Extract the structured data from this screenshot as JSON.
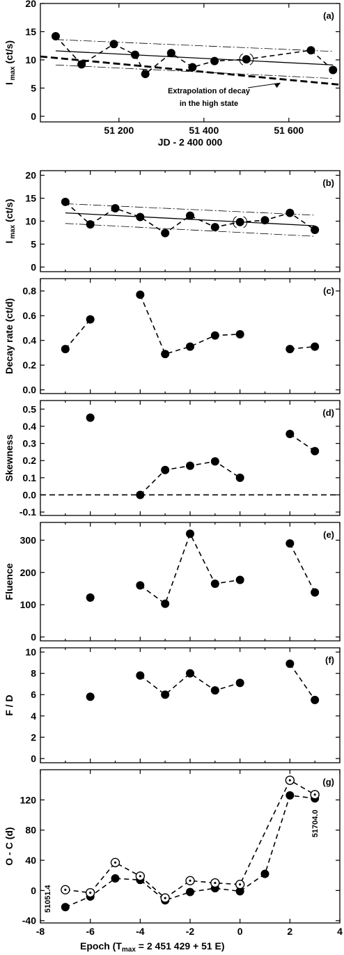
{
  "chart_data": [
    {
      "type": "line",
      "panel_label": "(a)",
      "ylabel": "I",
      "ylabel_sub": "max",
      "ylabel_unit": "(ct/s)",
      "xlabel": "JD - 2 400 000",
      "xlim": [
        51015,
        51720
      ],
      "ylim": [
        -1,
        20
      ],
      "xticks": [
        51200,
        51400,
        51600
      ],
      "xtick_labels": [
        "51 200",
        "51 400",
        "51 600"
      ],
      "yticks": [
        0,
        5,
        10,
        15,
        20
      ],
      "series": [
        {
          "style": "dashed-markers",
          "x": [
            51051,
            51112,
            51188,
            51238,
            51262,
            51323,
            51373,
            51425,
            51500,
            51652,
            51704
          ],
          "y": [
            14.2,
            9.2,
            12.8,
            10.9,
            7.5,
            11.2,
            8.7,
            9.8,
            10.1,
            11.7,
            8.2
          ],
          "open_x": [
            51500
          ]
        }
      ],
      "fits": [
        {
          "style": "solid",
          "x": [
            51051,
            51704
          ],
          "y": [
            11.6,
            9.1
          ]
        },
        {
          "style": "dashdot",
          "x": [
            51051,
            51704
          ],
          "y": [
            13.6,
            11.5
          ]
        },
        {
          "style": "dashdot",
          "x": [
            51051,
            51704
          ],
          "y": [
            9.1,
            6.7
          ]
        },
        {
          "style": "thick-dashed",
          "x": [
            51015,
            51720
          ],
          "y": [
            10.6,
            5.6
          ]
        }
      ],
      "annotation": {
        "line1": "Extrapolation of decay",
        "line2": "in the high state",
        "target_x": 51580,
        "target_y": 5.9
      }
    },
    {
      "type": "line",
      "panel_label": "(b)",
      "ylabel": "I",
      "ylabel_sub": "max",
      "ylabel_unit": "(ct/s)",
      "xlim": [
        -8,
        4
      ],
      "ylim": [
        -1,
        21
      ],
      "yticks": [
        0,
        5,
        10,
        15,
        20
      ],
      "series": [
        {
          "style": "dashed-markers",
          "x": [
            -7,
            -6,
            -5,
            -4,
            -3,
            -2,
            -1,
            0,
            1,
            2,
            3
          ],
          "y": [
            14.2,
            9.3,
            12.8,
            10.9,
            7.4,
            11.2,
            8.7,
            9.8,
            10.2,
            11.8,
            8.1
          ],
          "open_x": [
            0
          ]
        }
      ],
      "fits": [
        {
          "style": "solid",
          "x": [
            -7,
            3
          ],
          "y": [
            11.8,
            9.0
          ]
        },
        {
          "style": "dashdot",
          "x": [
            -7,
            3
          ],
          "y": [
            13.8,
            11.3
          ]
        },
        {
          "style": "dashdot",
          "x": [
            -7,
            3
          ],
          "y": [
            9.5,
            6.7
          ]
        }
      ]
    },
    {
      "type": "line",
      "panel_label": "(c)",
      "ylabel": "Decay  rate   (ct/d)",
      "xlim": [
        -8,
        4
      ],
      "ylim": [
        -0.03,
        0.9
      ],
      "yticks": [
        0.0,
        0.2,
        0.4,
        0.6,
        0.8
      ],
      "ytick_labels": [
        "0.0",
        "0.2",
        "0.4",
        "0.6",
        "0.8"
      ],
      "series": [
        {
          "style": "dashed-markers",
          "x": [
            -7,
            -6
          ],
          "y": [
            0.33,
            0.57
          ]
        },
        {
          "style": "dashed-markers",
          "x": [
            -4,
            -3,
            -2,
            -1,
            0
          ],
          "y": [
            0.77,
            0.29,
            0.35,
            0.44,
            0.45
          ]
        },
        {
          "style": "dashed-markers",
          "x": [
            2,
            3
          ],
          "y": [
            0.33,
            0.35
          ]
        }
      ]
    },
    {
      "type": "line",
      "panel_label": "(d)",
      "ylabel": "Skewness",
      "xlim": [
        -8,
        4
      ],
      "ylim": [
        -0.12,
        0.55
      ],
      "yticks": [
        -0.1,
        0.0,
        0.1,
        0.2,
        0.3,
        0.4,
        0.5
      ],
      "ytick_labels": [
        "-0.1",
        "0.0",
        "0.1",
        "0.2",
        "0.3",
        "0.4",
        "0.5"
      ],
      "reference_line": 0.0,
      "series": [
        {
          "style": "markers",
          "x": [
            -6
          ],
          "y": [
            0.45
          ]
        },
        {
          "style": "dashed-markers",
          "x": [
            -4,
            -3,
            -2,
            -1,
            0
          ],
          "y": [
            0.0,
            0.145,
            0.17,
            0.195,
            0.1
          ]
        },
        {
          "style": "dashed-markers",
          "x": [
            2,
            3
          ],
          "y": [
            0.355,
            0.255
          ]
        }
      ]
    },
    {
      "type": "line",
      "panel_label": "(e)",
      "ylabel": "Fluence",
      "xlim": [
        -8,
        4
      ],
      "ylim": [
        -12,
        355
      ],
      "yticks": [
        0,
        100,
        200,
        300
      ],
      "series": [
        {
          "style": "markers",
          "x": [
            -6
          ],
          "y": [
            122
          ]
        },
        {
          "style": "dashed-markers",
          "x": [
            -4,
            -3,
            -2,
            -1,
            0
          ],
          "y": [
            160,
            103,
            320,
            165,
            177
          ]
        },
        {
          "style": "dashed-markers",
          "x": [
            2,
            3
          ],
          "y": [
            290,
            138
          ]
        }
      ]
    },
    {
      "type": "line",
      "panel_label": "(f)",
      "ylabel": "F / D",
      "xlim": [
        -8,
        4
      ],
      "ylim": [
        -0.4,
        10.4
      ],
      "yticks": [
        0,
        2,
        4,
        6,
        8,
        10
      ],
      "series": [
        {
          "style": "markers",
          "x": [
            -6
          ],
          "y": [
            5.8
          ]
        },
        {
          "style": "dashed-markers",
          "x": [
            -4,
            -3,
            -2,
            -1,
            0
          ],
          "y": [
            7.8,
            6.0,
            8.0,
            6.4,
            7.1
          ]
        },
        {
          "style": "dashed-markers",
          "x": [
            2,
            3
          ],
          "y": [
            8.9,
            5.5
          ]
        }
      ]
    },
    {
      "type": "line",
      "panel_label": "(g)",
      "ylabel": "O - C   (d)",
      "xlabel": "Epoch",
      "xlabel_fit": "(T",
      "xlabel_sub": "max",
      "xlabel_eq": "= 2 451 429 + 51 E)",
      "xlim": [
        -8,
        4
      ],
      "ylim": [
        -43,
        160
      ],
      "xticks": [
        -8,
        -6,
        -4,
        -2,
        0,
        2,
        4
      ],
      "yticks": [
        -40,
        0,
        40,
        80,
        120
      ],
      "series": [
        {
          "style": "dashed-markers",
          "x": [
            -7,
            -6,
            -5,
            -4,
            -3,
            -2,
            -1,
            0,
            1,
            2,
            3
          ],
          "y": [
            -22,
            -8,
            16,
            14,
            -13,
            -2,
            3,
            -1,
            22,
            126,
            122
          ]
        },
        {
          "style": "open-dot-markers",
          "x": [
            -7,
            -6,
            -5,
            -4,
            -3,
            -2,
            -1,
            0,
            2,
            3
          ],
          "y": [
            1,
            -3,
            37,
            19,
            -10,
            13,
            10,
            8,
            146,
            127
          ]
        }
      ],
      "point_labels": [
        {
          "text": "51051.4",
          "x": -7,
          "y": -22
        },
        {
          "text": "51704.0",
          "x": 3,
          "y": 122
        }
      ]
    }
  ]
}
